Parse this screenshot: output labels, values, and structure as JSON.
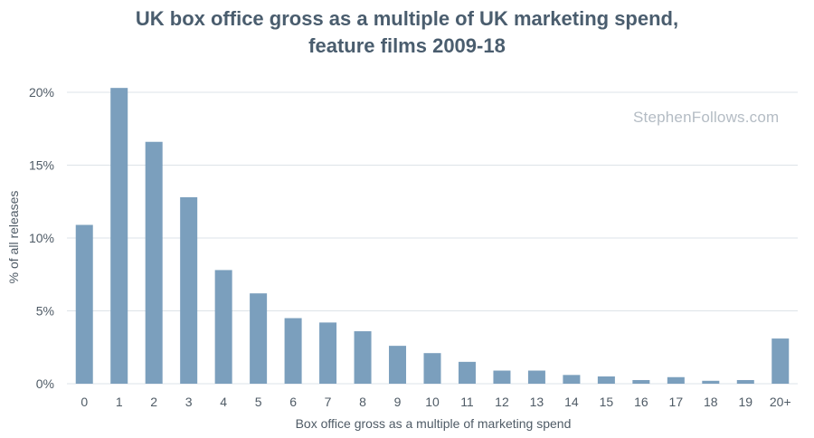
{
  "watermark": "StephenFollows.com",
  "colors": {
    "bar": "#7b9fbd",
    "grid": "#dde3e8",
    "text": "#4f5b66",
    "title": "#4a5d6e"
  },
  "chart_data": {
    "type": "bar",
    "title": [
      "UK box office gross as a multiple of UK marketing spend,",
      "feature films 2009-18"
    ],
    "xlabel": "Box office gross as a multiple of marketing spend",
    "ylabel": "% of all releases",
    "categories": [
      "0",
      "1",
      "2",
      "3",
      "4",
      "5",
      "6",
      "7",
      "8",
      "9",
      "10",
      "11",
      "12",
      "13",
      "14",
      "15",
      "16",
      "17",
      "18",
      "19",
      "20+"
    ],
    "values": [
      10.9,
      20.3,
      16.6,
      12.8,
      7.8,
      6.2,
      4.5,
      4.2,
      3.6,
      2.6,
      2.1,
      1.5,
      0.9,
      0.9,
      0.6,
      0.5,
      0.25,
      0.45,
      0.2,
      0.25,
      3.1
    ],
    "ylim": [
      0,
      20
    ],
    "yticks": [
      0,
      5,
      10,
      15,
      20
    ],
    "ytick_labels": [
      "0%",
      "5%",
      "10%",
      "15%",
      "20%"
    ],
    "grid": true,
    "legend": "none"
  }
}
